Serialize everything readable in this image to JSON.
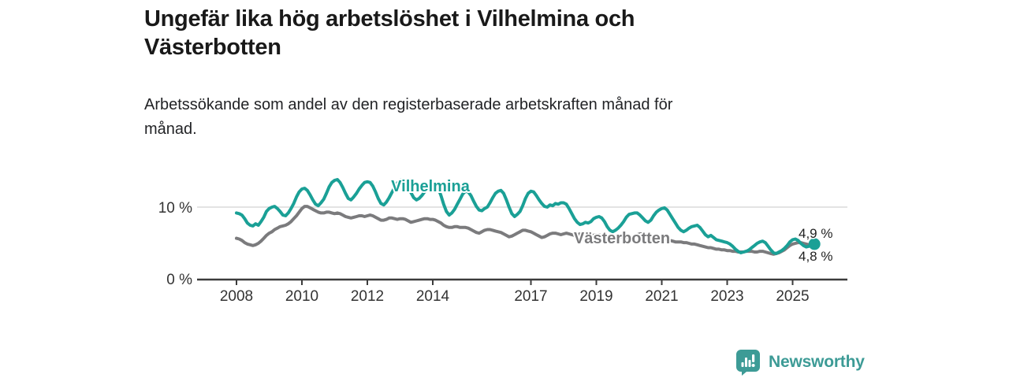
{
  "header": {
    "title": "Ungefär lika hög arbetslöshet i Vilhelmina och Västerbotten",
    "subtitle": "Arbetssökande som andel av den registerbaserade arbetskraften månad för månad."
  },
  "chart_data": {
    "type": "line",
    "title": "Ungefär lika hög arbetslöshet i Vilhelmina och Västerbotten",
    "subtitle": "Arbetssökande som andel av den registerbaserade arbetskraften månad för månad.",
    "unit": "%",
    "frequency": "monthly",
    "x_start": "2008-01",
    "x_end": "2025-09",
    "x_tick_years": [
      2008,
      2010,
      2012,
      2014,
      2017,
      2019,
      2021,
      2023,
      2025
    ],
    "y_ticks": [
      {
        "value": 0,
        "label": "0 %"
      },
      {
        "value": 10,
        "label": "10 %"
      }
    ],
    "ylim": [
      0,
      15
    ],
    "grid": "single horizontal gridline at 10 %",
    "legend_position": "labels inline on lines",
    "series": [
      {
        "name": "Vilhelmina",
        "color": "#1aa096",
        "end_label": "4,9 %",
        "end_value": 4.9,
        "values": [
          9.2,
          9.1,
          8.9,
          8.4,
          7.8,
          7.5,
          7.4,
          7.7,
          7.5,
          8.0,
          8.6,
          9.4,
          9.8,
          10.0,
          10.1,
          9.8,
          9.4,
          8.9,
          8.8,
          9.2,
          9.8,
          10.5,
          11.4,
          12.1,
          12.5,
          12.6,
          12.3,
          11.7,
          11.0,
          10.4,
          10.2,
          10.6,
          11.1,
          11.9,
          12.8,
          13.4,
          13.7,
          13.8,
          13.4,
          12.7,
          11.9,
          11.2,
          11.0,
          11.4,
          11.9,
          12.5,
          13.0,
          13.4,
          13.5,
          13.4,
          12.9,
          12.1,
          11.2,
          10.5,
          10.3,
          10.7,
          11.3,
          12.0,
          12.7,
          13.3,
          13.7,
          13.8,
          13.4,
          12.8,
          12.0,
          11.3,
          11.0,
          11.2,
          11.6,
          12.1,
          12.6,
          13.0,
          13.2,
          13.1,
          12.6,
          11.6,
          10.4,
          9.4,
          8.9,
          9.2,
          9.7,
          10.4,
          11.1,
          11.8,
          12.2,
          12.1,
          11.6,
          10.8,
          10.1,
          9.6,
          9.5,
          9.8,
          10.0,
          10.6,
          11.3,
          11.9,
          12.2,
          12.3,
          11.9,
          11.0,
          10.0,
          9.1,
          8.7,
          9.0,
          9.4,
          10.2,
          11.2,
          11.9,
          12.2,
          12.1,
          11.6,
          11.0,
          10.5,
          10.1,
          10.0,
          10.3,
          10.2,
          10.5,
          10.4,
          10.6,
          10.6,
          10.4,
          9.8,
          9.1,
          8.4,
          7.9,
          7.6,
          7.7,
          7.9,
          7.8,
          8.0,
          8.4,
          8.6,
          8.7,
          8.5,
          8.0,
          7.3,
          6.8,
          6.6,
          6.8,
          7.1,
          7.5,
          8.0,
          8.6,
          9.0,
          9.1,
          9.2,
          9.2,
          8.9,
          8.5,
          8.1,
          7.9,
          8.2,
          8.8,
          9.3,
          9.6,
          9.8,
          9.9,
          9.6,
          9.0,
          8.4,
          7.8,
          7.2,
          6.8,
          6.6,
          6.8,
          7.1,
          7.3,
          7.4,
          7.5,
          7.2,
          6.7,
          6.2,
          5.9,
          6.1,
          5.8,
          5.5,
          5.4,
          5.3,
          5.2,
          5.1,
          4.9,
          4.6,
          4.2,
          3.9,
          3.7,
          3.8,
          3.9,
          4.1,
          4.4,
          4.7,
          5.0,
          5.2,
          5.3,
          5.1,
          4.6,
          4.1,
          3.7,
          3.6,
          3.8,
          4.0,
          4.3,
          4.7,
          5.2,
          5.5,
          5.6,
          5.4,
          5.0,
          4.7,
          4.5,
          4.6,
          4.8,
          4.9
        ]
      },
      {
        "name": "Västerbotten",
        "color": "#7b7b7d",
        "end_label": "4,8 %",
        "end_value": 4.8,
        "values": [
          5.7,
          5.6,
          5.4,
          5.1,
          4.9,
          4.8,
          4.7,
          4.8,
          5.0,
          5.3,
          5.7,
          6.1,
          6.4,
          6.6,
          6.9,
          7.1,
          7.3,
          7.4,
          7.5,
          7.7,
          8.0,
          8.4,
          8.8,
          9.3,
          9.8,
          10.1,
          10.1,
          9.9,
          9.7,
          9.5,
          9.3,
          9.2,
          9.2,
          9.3,
          9.3,
          9.2,
          9.1,
          9.2,
          9.1,
          8.9,
          8.7,
          8.6,
          8.5,
          8.6,
          8.7,
          8.8,
          8.8,
          8.7,
          8.8,
          8.9,
          8.8,
          8.6,
          8.4,
          8.2,
          8.2,
          8.3,
          8.5,
          8.5,
          8.4,
          8.3,
          8.4,
          8.4,
          8.3,
          8.1,
          7.9,
          8.0,
          8.1,
          8.2,
          8.3,
          8.4,
          8.4,
          8.3,
          8.3,
          8.2,
          8.0,
          7.8,
          7.5,
          7.3,
          7.2,
          7.2,
          7.3,
          7.3,
          7.2,
          7.2,
          7.2,
          7.1,
          6.9,
          6.7,
          6.5,
          6.4,
          6.6,
          6.8,
          6.9,
          6.9,
          6.8,
          6.7,
          6.6,
          6.5,
          6.3,
          6.1,
          5.9,
          6.0,
          6.2,
          6.4,
          6.6,
          6.8,
          6.8,
          6.7,
          6.6,
          6.4,
          6.2,
          6.0,
          5.8,
          5.9,
          6.1,
          6.3,
          6.4,
          6.4,
          6.3,
          6.2,
          6.3,
          6.4,
          6.3,
          6.2,
          6.1,
          6.2,
          6.3,
          6.3,
          6.2,
          6.2,
          6.1,
          6.1,
          6.2,
          6.2,
          6.1,
          6.0,
          5.9,
          5.9,
          6.0,
          6.0,
          5.9,
          5.9,
          5.8,
          5.8,
          5.9,
          5.9,
          6.0,
          6.2,
          6.3,
          6.3,
          6.2,
          6.1,
          6.0,
          5.9,
          5.8,
          5.7,
          5.7,
          5.6,
          5.5,
          5.4,
          5.3,
          5.2,
          5.2,
          5.2,
          5.1,
          5.1,
          5.0,
          4.9,
          4.9,
          4.8,
          4.7,
          4.6,
          4.5,
          4.4,
          4.4,
          4.3,
          4.2,
          4.2,
          4.1,
          4.1,
          4.0,
          4.0,
          3.9,
          3.9,
          3.8,
          3.8,
          3.8,
          3.9,
          3.9,
          3.9,
          3.8,
          3.8,
          3.9,
          3.9,
          3.8,
          3.7,
          3.6,
          3.5,
          3.6,
          3.7,
          3.9,
          4.1,
          4.4,
          4.7,
          4.9,
          5.0,
          5.1,
          5.1,
          5.0,
          4.9,
          4.8,
          4.8,
          4.8
        ]
      }
    ]
  },
  "footer": {
    "brand": "Newsworthy",
    "brand_color": "#3d9b96",
    "logo_icon": "newsworthy-bar-chart-speech-bubble"
  }
}
